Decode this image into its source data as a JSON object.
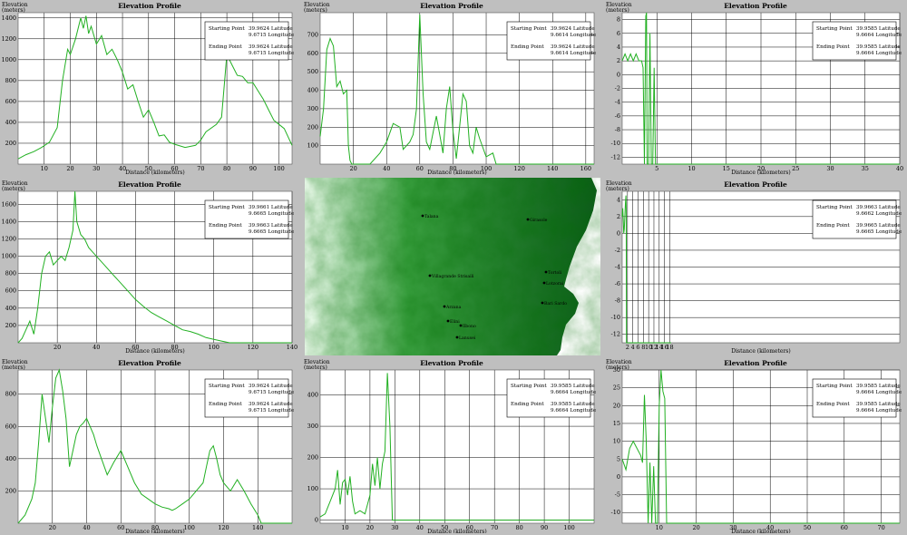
{
  "common": {
    "title": "Elevation Profile",
    "ylabel_line1": "Elevation",
    "ylabel_line2": "(meters)",
    "xlabel": "Distance (kilometers)",
    "start_label": "Starting Point",
    "end_label": "Ending Point",
    "line_color": "#22b022",
    "grid_color": "#000000",
    "plot_bg": "#ffffff",
    "page_bg": "#bfbfbf"
  },
  "chart_data": [
    {
      "type": "line",
      "title": "Elevation Profile",
      "xlabel": "Distance (kilometers)",
      "ylabel": "Elevation (meters)",
      "xlim": [
        0,
        105
      ],
      "ylim": [
        0,
        1450
      ],
      "xticks": [
        10,
        20,
        30,
        40,
        50,
        60,
        70,
        80,
        90,
        100
      ],
      "yticks": [
        200,
        400,
        600,
        800,
        1000,
        1200,
        1400
      ],
      "legend": {
        "start": [
          "39.9624 Latitude",
          "9.6715 Longitude"
        ],
        "end": [
          "39.9624 Latitude",
          "9.6715 Longitude"
        ]
      },
      "x": [
        0,
        3,
        6,
        9,
        12,
        15,
        17,
        19,
        20,
        22,
        24,
        25,
        26,
        27,
        28,
        30,
        32,
        34,
        36,
        38,
        40,
        42,
        44,
        46,
        48,
        50,
        52,
        54,
        56,
        58,
        60,
        64,
        68,
        70,
        72,
        76,
        78,
        80,
        82,
        84,
        86,
        88,
        90,
        92,
        94,
        96,
        98,
        100,
        102,
        105
      ],
      "y": [
        50,
        90,
        120,
        160,
        210,
        350,
        800,
        1100,
        1050,
        1200,
        1400,
        1300,
        1420,
        1250,
        1320,
        1150,
        1230,
        1050,
        1100,
        1000,
        880,
        720,
        760,
        600,
        450,
        520,
        400,
        270,
        280,
        210,
        190,
        160,
        180,
        230,
        310,
        380,
        450,
        1050,
        950,
        850,
        840,
        780,
        780,
        700,
        620,
        520,
        420,
        380,
        340,
        180
      ],
      "series_name": ""
    },
    {
      "type": "line",
      "title": "Elevation Profile",
      "xlabel": "Distance (kilometers)",
      "ylabel": "Elevation (meters)",
      "xlim": [
        0,
        165
      ],
      "ylim": [
        0,
        820
      ],
      "xticks": [
        20,
        40,
        60,
        80,
        100,
        120,
        140,
        160
      ],
      "yticks": [
        100,
        200,
        300,
        400,
        500,
        600,
        700
      ],
      "legend": {
        "start": [
          "39.9624 Latitude",
          "9.6614 Longitude"
        ],
        "end": [
          "39.9624 Latitude",
          "9.6614 Longitude"
        ]
      },
      "x": [
        0,
        2,
        4,
        6,
        8,
        10,
        12,
        14,
        16,
        17,
        18,
        19,
        20,
        30,
        36,
        40,
        44,
        48,
        50,
        54,
        56,
        58,
        60,
        62,
        64,
        66,
        70,
        72,
        74,
        76,
        78,
        80,
        82,
        84,
        86,
        88,
        90,
        92,
        94,
        96,
        100,
        104,
        106,
        110,
        165
      ],
      "y": [
        150,
        300,
        620,
        680,
        640,
        420,
        450,
        380,
        400,
        100,
        20,
        0,
        0,
        0,
        60,
        120,
        220,
        200,
        80,
        120,
        160,
        300,
        810,
        380,
        120,
        80,
        260,
        160,
        60,
        300,
        420,
        180,
        30,
        200,
        380,
        340,
        100,
        60,
        200,
        140,
        40,
        60,
        0,
        0,
        0
      ],
      "series_name": ""
    },
    {
      "type": "line",
      "title": "Elevation Profile",
      "xlabel": "Distance (kilometers)",
      "ylabel": "Elevation (meters)",
      "xlim": [
        0,
        40
      ],
      "ylim": [
        -13,
        9
      ],
      "xticks": [
        5,
        10,
        15,
        20,
        25,
        30,
        35,
        40
      ],
      "yticks": [
        -12,
        -10,
        -8,
        -6,
        -4,
        -2,
        0,
        2,
        4,
        6,
        8
      ],
      "legend": {
        "start": [
          "39.9585 Latitude",
          "9.6664 Longitude"
        ],
        "end": [
          "39.9585 Latitude",
          "9.6664 Longitude"
        ]
      },
      "x": [
        0,
        0.4,
        0.8,
        1.2,
        1.6,
        2.0,
        2.4,
        2.8,
        3.0,
        3.2,
        3.4,
        3.5,
        3.6,
        3.8,
        4.0,
        4.2,
        4.4,
        4.6,
        4.8,
        5.0,
        40
      ],
      "y": [
        2,
        3,
        2,
        3,
        2,
        3,
        2,
        2,
        1,
        -13,
        8.5,
        9,
        -13,
        -13,
        6,
        -13,
        -13,
        1,
        -13,
        -13,
        -13
      ],
      "series_name": ""
    },
    {
      "type": "line",
      "title": "Elevation Profile",
      "xlabel": "Distance (kilometers)",
      "ylabel": "Elevation (meters)",
      "xlim": [
        0,
        140
      ],
      "ylim": [
        0,
        1750
      ],
      "xticks": [
        20,
        40,
        60,
        80,
        100,
        120,
        140
      ],
      "yticks": [
        200,
        400,
        600,
        800,
        1000,
        1200,
        1400,
        1600
      ],
      "legend": {
        "start": [
          "39.9661 Latitude",
          "9.6665 Longitude"
        ],
        "end": [
          "39.9663 Latitude",
          "9.6665 Longitude"
        ]
      },
      "x": [
        0,
        2,
        4,
        6,
        8,
        10,
        12,
        14,
        16,
        18,
        20,
        22,
        24,
        26,
        28,
        29,
        30,
        32,
        34,
        36,
        38,
        40,
        44,
        48,
        52,
        56,
        60,
        64,
        68,
        72,
        76,
        80,
        84,
        88,
        92,
        96,
        100,
        104,
        108,
        140
      ],
      "y": [
        0,
        50,
        150,
        250,
        100,
        400,
        800,
        1000,
        1050,
        900,
        950,
        1000,
        950,
        1100,
        1300,
        1750,
        1400,
        1250,
        1200,
        1100,
        1050,
        1000,
        900,
        800,
        700,
        600,
        500,
        420,
        350,
        300,
        250,
        200,
        150,
        130,
        100,
        60,
        40,
        20,
        0,
        0
      ],
      "series_name": ""
    },
    {
      "type": "line",
      "title": "Elevation Profile",
      "xlabel": "Distance (kilometers)",
      "ylabel": "Elevation (meters)",
      "xlim": [
        0,
        105
      ],
      "ylim": [
        -13,
        5
      ],
      "xticks": [
        2,
        4,
        6,
        8,
        10,
        12,
        14,
        16,
        18
      ],
      "yticks": [
        -12,
        -10,
        -8,
        -6,
        -4,
        -2,
        0,
        2,
        4
      ],
      "legend": {
        "start": [
          "39.9663 Latitude",
          "9.6662 Longitude"
        ],
        "end": [
          "39.9665 Latitude",
          "9.6665 Longitude"
        ]
      },
      "x": [
        0,
        0.2,
        0.4,
        0.6,
        0.8,
        1.0,
        1.2,
        1.3,
        1.4,
        1.5,
        1.6,
        1.7,
        18.5
      ],
      "y": [
        2,
        3,
        1.5,
        0,
        0.5,
        2,
        3.5,
        4,
        4.5,
        3,
        -13,
        -13,
        -13
      ],
      "series_name": ""
    },
    {
      "type": "line",
      "title": "Elevation Profile",
      "xlabel": "Distance (kilometers)",
      "ylabel": "Elevation (meters)",
      "xlim": [
        0,
        160
      ],
      "ylim": [
        0,
        950
      ],
      "xticks": [
        20,
        40,
        60,
        80,
        100,
        120,
        140
      ],
      "yticks": [
        200,
        400,
        600,
        800
      ],
      "legend": {
        "start": [
          "39.9624 Latitude",
          "9.6715 Longitude"
        ],
        "end": [
          "39.9624 Latitude",
          "9.6715 Longitude"
        ]
      },
      "x": [
        0,
        4,
        8,
        10,
        12,
        14,
        16,
        18,
        20,
        22,
        24,
        26,
        28,
        30,
        32,
        34,
        36,
        38,
        40,
        42,
        44,
        46,
        48,
        52,
        56,
        60,
        64,
        68,
        72,
        76,
        80,
        84,
        88,
        90,
        92,
        96,
        100,
        104,
        108,
        110,
        112,
        114,
        116,
        118,
        120,
        124,
        128,
        132,
        136,
        140,
        142,
        160
      ],
      "y": [
        0,
        50,
        150,
        250,
        500,
        800,
        650,
        500,
        720,
        900,
        950,
        820,
        650,
        350,
        450,
        550,
        600,
        620,
        650,
        600,
        550,
        480,
        420,
        300,
        380,
        450,
        350,
        250,
        180,
        150,
        120,
        100,
        90,
        80,
        90,
        120,
        150,
        200,
        250,
        350,
        450,
        480,
        400,
        300,
        250,
        200,
        270,
        200,
        120,
        50,
        0,
        0
      ],
      "series_name": ""
    },
    {
      "type": "line",
      "title": "Elevation Profile",
      "xlabel": "Distance (kilometers)",
      "ylabel": "Elevation (meters)",
      "xlim": [
        0,
        110
      ],
      "ylim": [
        -10,
        480
      ],
      "xticks": [
        10,
        20,
        30,
        40,
        50,
        60,
        70,
        80,
        90,
        100
      ],
      "yticks": [
        0,
        100,
        200,
        300,
        400
      ],
      "legend": {
        "start": [
          "39.9585 Latitude",
          "9.6664 Longitude"
        ],
        "end": [
          "39.9585 Latitude",
          "9.6664 Longitude"
        ]
      },
      "x": [
        0,
        2,
        4,
        6,
        7,
        8,
        9,
        10,
        11,
        12,
        13,
        14,
        16,
        18,
        20,
        21,
        22,
        23,
        24,
        25,
        26,
        27,
        28,
        29,
        30,
        110
      ],
      "y": [
        10,
        20,
        60,
        100,
        160,
        50,
        120,
        130,
        80,
        140,
        60,
        20,
        30,
        20,
        80,
        180,
        110,
        200,
        100,
        180,
        220,
        470,
        300,
        0,
        0,
        0
      ],
      "series_name": ""
    },
    {
      "type": "line",
      "title": "Elevation Profile",
      "xlabel": "Distance (kilometers)",
      "ylabel": "Elevation (meters)",
      "xlim": [
        0,
        75
      ],
      "ylim": [
        -13,
        30
      ],
      "xticks": [
        10,
        20,
        30,
        40,
        50,
        60,
        70
      ],
      "yticks": [
        -10,
        -5,
        0,
        5,
        10,
        15,
        20,
        25,
        30
      ],
      "legend": {
        "start": [
          "39.9585 Latitude",
          "9.6664 Longitude"
        ],
        "end": [
          "39.9585 Latitude",
          "9.6664 Longitude"
        ]
      },
      "x": [
        0,
        1,
        2,
        3,
        4,
        5,
        5.5,
        6,
        6.5,
        7,
        7.5,
        8,
        8.5,
        9,
        9.5,
        10,
        10.5,
        11,
        11.5,
        12,
        12.5,
        13,
        75
      ],
      "y": [
        5,
        2,
        8,
        10,
        8,
        6,
        4,
        23,
        10,
        -13,
        4,
        -13,
        3,
        -13,
        -13,
        20,
        30,
        24,
        22,
        -13,
        -13,
        -13,
        -13
      ],
      "series_name": ""
    }
  ],
  "map": {
    "colors": [
      "#f4fff4",
      "#3aa040",
      "#0d5c1a"
    ],
    "places": [
      "Talana",
      "Villagrande Strisaili",
      "Arzana",
      "Elini",
      "Ilbono",
      "Lanusei",
      "Girasole",
      "Tortoli",
      "Lotzorai",
      "Bari Sardo"
    ]
  }
}
